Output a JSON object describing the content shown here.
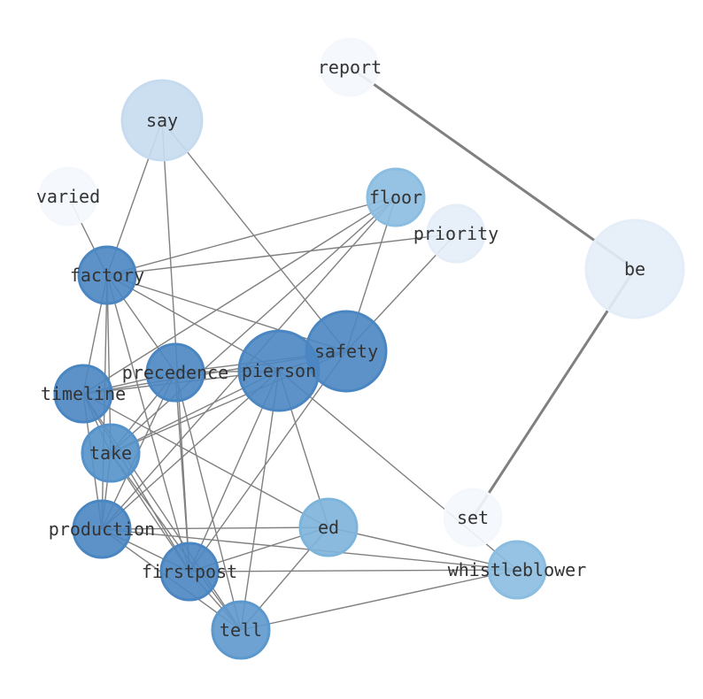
{
  "graph": {
    "nodes": [
      {
        "id": "report",
        "color": "#f4f8fd"
      },
      {
        "id": "say",
        "color": "#c6dbef"
      },
      {
        "id": "varied",
        "color": "#f4f8fd"
      },
      {
        "id": "floor",
        "color": "#8bbde0"
      },
      {
        "id": "priority",
        "color": "#e4edf8"
      },
      {
        "id": "be",
        "color": "#e4edf8"
      },
      {
        "id": "factory",
        "color": "#4a86c2"
      },
      {
        "id": "safety",
        "color": "#4a86c2"
      },
      {
        "id": "pierson",
        "color": "#4a86c2"
      },
      {
        "id": "precedence",
        "color": "#4a86c2"
      },
      {
        "id": "timeline",
        "color": "#4a86c2"
      },
      {
        "id": "take",
        "color": "#5592ca"
      },
      {
        "id": "set",
        "color": "#f4f8fd"
      },
      {
        "id": "production",
        "color": "#4a86c2"
      },
      {
        "id": "ed",
        "color": "#7db4db"
      },
      {
        "id": "firstpost",
        "color": "#4a86c2"
      },
      {
        "id": "whistleblower",
        "color": "#8bbde0"
      },
      {
        "id": "tell",
        "color": "#5d98cd"
      }
    ],
    "strong_edges": [
      [
        "report",
        "be"
      ],
      [
        "be",
        "set"
      ]
    ],
    "edges": [
      [
        "say",
        "factory"
      ],
      [
        "say",
        "firstpost"
      ],
      [
        "say",
        "safety"
      ],
      [
        "varied",
        "factory"
      ],
      [
        "floor",
        "factory"
      ],
      [
        "floor",
        "timeline"
      ],
      [
        "floor",
        "take"
      ],
      [
        "floor",
        "production"
      ],
      [
        "floor",
        "safety"
      ],
      [
        "priority",
        "factory"
      ],
      [
        "priority",
        "safety"
      ],
      [
        "factory",
        "safety"
      ],
      [
        "factory",
        "pierson"
      ],
      [
        "factory",
        "precedence"
      ],
      [
        "factory",
        "timeline"
      ],
      [
        "factory",
        "take"
      ],
      [
        "factory",
        "production"
      ],
      [
        "factory",
        "firstpost"
      ],
      [
        "safety",
        "pierson"
      ],
      [
        "safety",
        "precedence"
      ],
      [
        "safety",
        "timeline"
      ],
      [
        "safety",
        "take"
      ],
      [
        "safety",
        "firstpost"
      ],
      [
        "pierson",
        "timeline"
      ],
      [
        "pierson",
        "precedence"
      ],
      [
        "pierson",
        "take"
      ],
      [
        "pierson",
        "production"
      ],
      [
        "pierson",
        "firstpost"
      ],
      [
        "pierson",
        "tell"
      ],
      [
        "pierson",
        "ed"
      ],
      [
        "pierson",
        "whistleblower"
      ],
      [
        "precedence",
        "timeline"
      ],
      [
        "precedence",
        "take"
      ],
      [
        "precedence",
        "production"
      ],
      [
        "precedence",
        "firstpost"
      ],
      [
        "precedence",
        "tell"
      ],
      [
        "timeline",
        "take"
      ],
      [
        "timeline",
        "production"
      ],
      [
        "timeline",
        "firstpost"
      ],
      [
        "timeline",
        "tell"
      ],
      [
        "timeline",
        "ed"
      ],
      [
        "take",
        "production"
      ],
      [
        "take",
        "firstpost"
      ],
      [
        "take",
        "tell"
      ],
      [
        "production",
        "ed"
      ],
      [
        "production",
        "whistleblower"
      ],
      [
        "production",
        "firstpost"
      ],
      [
        "production",
        "tell"
      ],
      [
        "firstpost",
        "ed"
      ],
      [
        "firstpost",
        "whistleblower"
      ],
      [
        "firstpost",
        "tell"
      ],
      [
        "ed",
        "whistleblower"
      ],
      [
        "ed",
        "tell"
      ],
      [
        "tell",
        "whistleblower"
      ]
    ],
    "edge_color": "#808080"
  }
}
